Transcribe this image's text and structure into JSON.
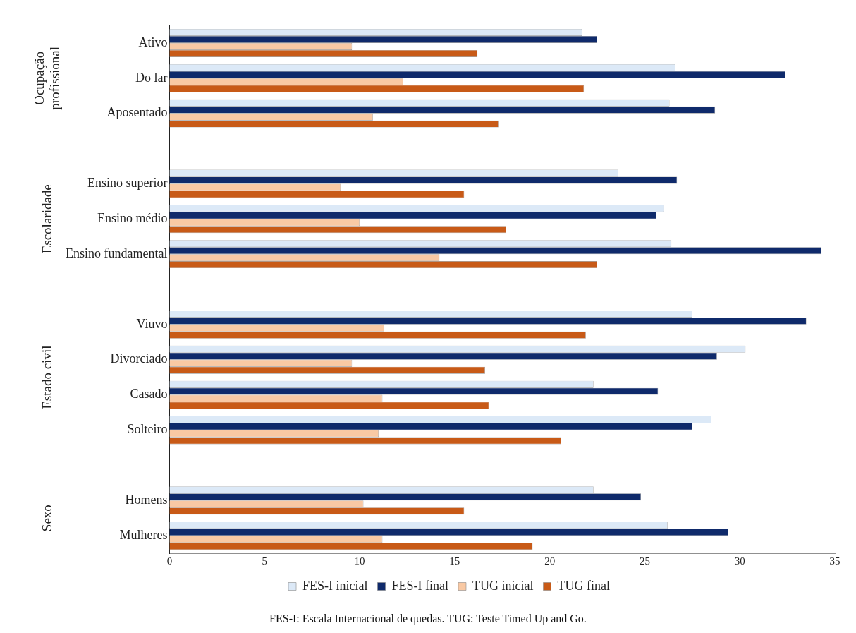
{
  "chart_data": {
    "type": "bar",
    "orientation": "horizontal",
    "categories": [
      "Ativo",
      "Do lar",
      "Aposentado",
      null,
      "Ensino superior",
      "Ensino médio",
      "Ensino fundamental",
      null,
      "Viuvo",
      "Divorciado",
      "Casado",
      "Solteiro",
      null,
      "Homens",
      "Mulheres"
    ],
    "series": [
      {
        "name": "FES-I inicial",
        "color": "#dce9f7",
        "values": [
          21.7,
          26.6,
          26.3,
          null,
          23.6,
          26.0,
          26.4,
          null,
          27.5,
          30.3,
          22.3,
          28.5,
          null,
          22.3,
          26.2
        ]
      },
      {
        "name": "FES-I final",
        "color": "#0f2a6b",
        "values": [
          22.5,
          32.4,
          28.7,
          null,
          26.7,
          25.6,
          34.3,
          null,
          33.5,
          28.8,
          25.7,
          27.5,
          null,
          24.8,
          29.4
        ]
      },
      {
        "name": "TUG inicial",
        "color": "#f9c9a4",
        "values": [
          9.6,
          12.3,
          10.7,
          null,
          9.0,
          10.0,
          14.2,
          null,
          11.3,
          9.6,
          11.2,
          11.0,
          null,
          10.2,
          11.2
        ]
      },
      {
        "name": "TUG final",
        "color": "#c85a17",
        "values": [
          16.2,
          21.8,
          17.3,
          null,
          15.5,
          17.7,
          22.5,
          null,
          21.9,
          16.6,
          16.8,
          20.6,
          null,
          15.5,
          19.1
        ]
      }
    ],
    "xlim": [
      0,
      35
    ],
    "xticks": [
      0,
      5,
      10,
      15,
      20,
      25,
      30,
      35
    ],
    "grid": false,
    "legend": "bottom",
    "annotations": [
      "Ocupação profissional",
      "Escolaridade",
      "Estado civil",
      "Sexo",
      "FES-I: Escala Internacional de quedas. TUG: Teste Timed Up and Go."
    ]
  }
}
